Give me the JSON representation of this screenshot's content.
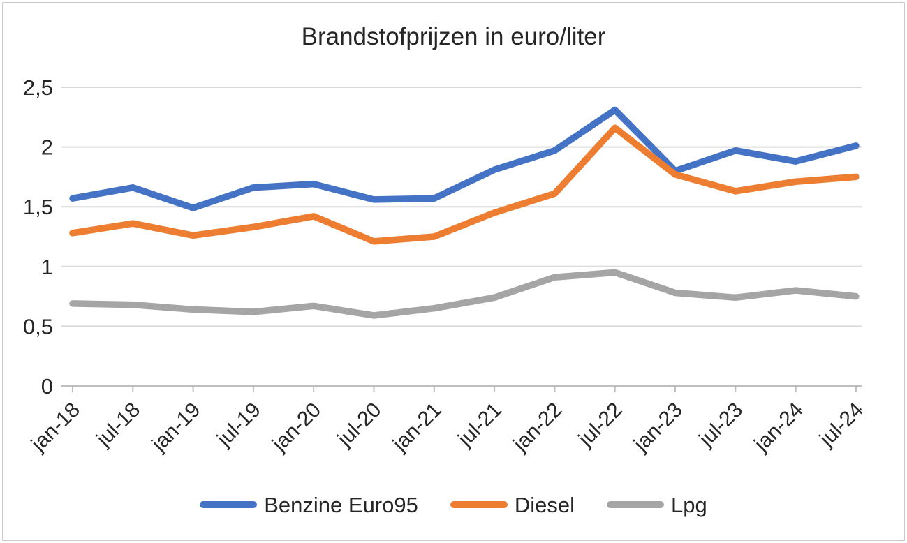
{
  "chart_data": {
    "type": "line",
    "title": "Brandstofprijzen in euro/liter",
    "categories": [
      "jan-18",
      "jul-18",
      "jan-19",
      "jul-19",
      "jan-20",
      "jul-20",
      "jan-21",
      "jul-21",
      "jan-22",
      "jul-22",
      "jan-23",
      "jul-23",
      "jan-24",
      "jul-24"
    ],
    "series": [
      {
        "name": "Benzine Euro95",
        "color": "#4472C4",
        "values": [
          1.57,
          1.66,
          1.49,
          1.66,
          1.69,
          1.56,
          1.57,
          1.81,
          1.97,
          2.31,
          1.8,
          1.97,
          1.88,
          2.01
        ]
      },
      {
        "name": "Diesel",
        "color": "#ED7D31",
        "values": [
          1.28,
          1.36,
          1.26,
          1.33,
          1.42,
          1.21,
          1.25,
          1.45,
          1.61,
          2.16,
          1.77,
          1.63,
          1.71,
          1.75
        ]
      },
      {
        "name": "Lpg",
        "color": "#A5A5A5",
        "values": [
          0.69,
          0.68,
          0.64,
          0.62,
          0.67,
          0.59,
          0.65,
          0.74,
          0.91,
          0.95,
          0.78,
          0.74,
          0.8,
          0.75
        ]
      }
    ],
    "xlabel": "",
    "ylabel": "",
    "ylim": [
      0,
      2.5
    ],
    "y_tick_step": 0.5,
    "y_tick_labels": [
      "0",
      "0,5",
      "1",
      "1,5",
      "2",
      "2,5"
    ],
    "grid": true,
    "legend_position": "bottom",
    "colors": {
      "gridline": "#D9D9D9",
      "axis": "#BFBFBF",
      "text": "#262626",
      "background": "#FFFFFF",
      "frame_border": "#C9C9C9"
    }
  }
}
